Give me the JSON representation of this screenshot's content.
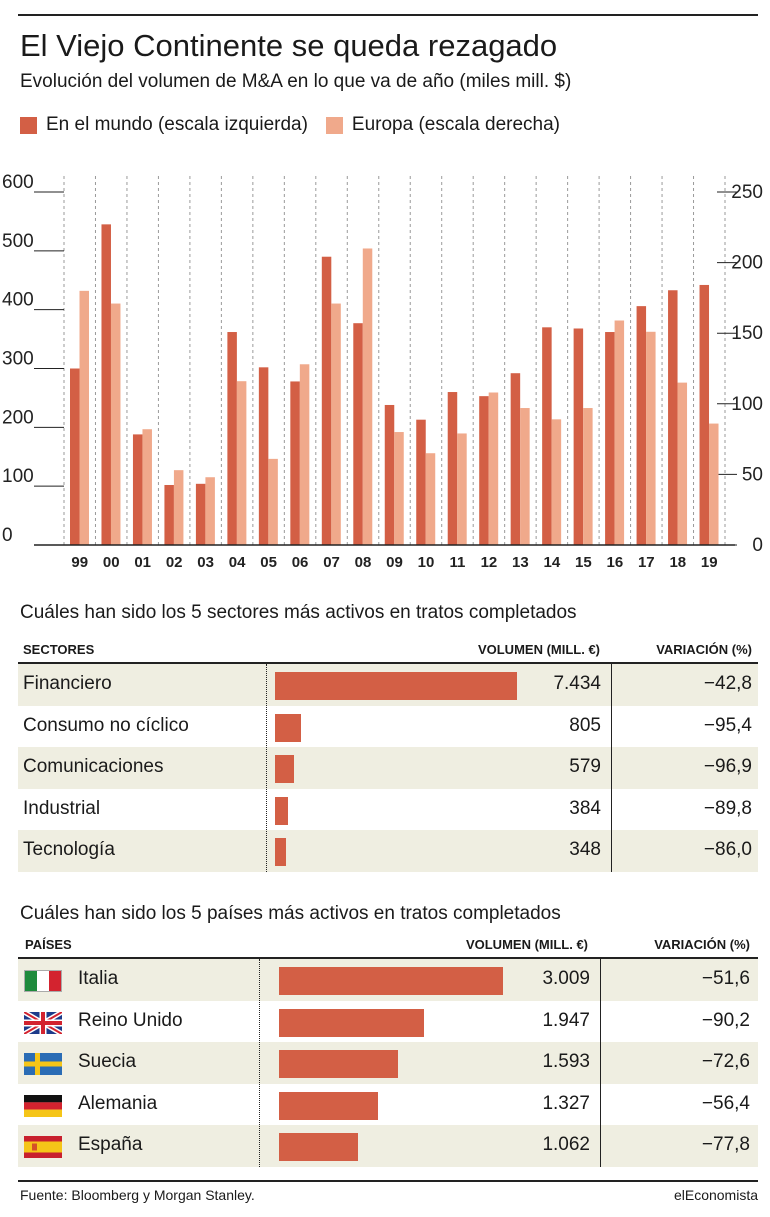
{
  "header": {
    "title": "El Viejo Continente se queda rezagado",
    "subtitle": "Evolución del volumen de M&A en lo que va de año (miles mill. $)"
  },
  "legend": {
    "world": "En el mundo (escala izquierda)",
    "europe": "Europa (escala derecha)"
  },
  "colors": {
    "world": "#d35f45",
    "europe": "#f0a98b",
    "table_shade": "#efeee1"
  },
  "chart_data": {
    "type": "bar",
    "categories": [
      "99",
      "00",
      "01",
      "02",
      "03",
      "04",
      "05",
      "06",
      "07",
      "08",
      "09",
      "10",
      "11",
      "12",
      "13",
      "14",
      "15",
      "16",
      "17",
      "18",
      "19"
    ],
    "series": [
      {
        "name": "En el mundo (escala izquierda)",
        "axis": "left",
        "values": [
          300,
          545,
          188,
          102,
          104,
          362,
          302,
          278,
          490,
          377,
          238,
          213,
          260,
          253,
          292,
          370,
          368,
          362,
          406,
          433,
          442
        ]
      },
      {
        "name": "Europa (escala derecha)",
        "axis": "right",
        "values": [
          180,
          171,
          82,
          53,
          48,
          116,
          61,
          128,
          171,
          210,
          80,
          65,
          79,
          108,
          97,
          89,
          97,
          159,
          151,
          115,
          86
        ]
      }
    ],
    "y_left": {
      "ylim": [
        0,
        600
      ],
      "ticks": [
        "0",
        "100",
        "200",
        "300",
        "400",
        "500",
        "600"
      ]
    },
    "y_right": {
      "ylim": [
        0,
        250
      ],
      "ticks": [
        "0",
        "50",
        "100",
        "150",
        "200",
        "250"
      ]
    },
    "grid": "vertical-dashed"
  },
  "sectors": {
    "title": "Cuáles han sido los 5 sectores más activos en tratos completados",
    "headers": {
      "name": "SECTORES",
      "volume": "VOLUMEN (MILL. €)",
      "variation": "VARIACIÓN (%)"
    },
    "rows": [
      {
        "name": "Financiero",
        "volume": "7.434",
        "value": 7434,
        "variation": "−42,8"
      },
      {
        "name": "Consumo no cíclico",
        "volume": "805",
        "value": 805,
        "variation": "−95,4"
      },
      {
        "name": "Comunicaciones",
        "volume": "579",
        "value": 579,
        "variation": "−96,9"
      },
      {
        "name": "Industrial",
        "volume": "384",
        "value": 384,
        "variation": "−89,8"
      },
      {
        "name": "Tecnología",
        "volume": "348",
        "value": 348,
        "variation": "−86,0"
      }
    ]
  },
  "countries": {
    "title": "Cuáles han sido los 5 países más activos en tratos completados",
    "headers": {
      "name": "PAÍSES",
      "volume": "VOLUMEN (MILL. €)",
      "variation": "VARIACIÓN (%)"
    },
    "rows": [
      {
        "name": "Italia",
        "flag": "italy-flag-icon",
        "volume": "3.009",
        "value": 3009,
        "variation": "−51,6"
      },
      {
        "name": "Reino Unido",
        "flag": "uk-flag-icon",
        "volume": "1.947",
        "value": 1947,
        "variation": "−90,2"
      },
      {
        "name": "Suecia",
        "flag": "sweden-flag-icon",
        "volume": "1.593",
        "value": 1593,
        "variation": "−72,6"
      },
      {
        "name": "Alemania",
        "flag": "germany-flag-icon",
        "volume": "1.327",
        "value": 1327,
        "variation": "−56,4"
      },
      {
        "name": "España",
        "flag": "spain-flag-icon",
        "volume": "1.062",
        "value": 1062,
        "variation": "−77,8"
      }
    ]
  },
  "footer": {
    "source": "Fuente: Bloomberg y Morgan Stanley.",
    "brand": "elEconomista"
  }
}
